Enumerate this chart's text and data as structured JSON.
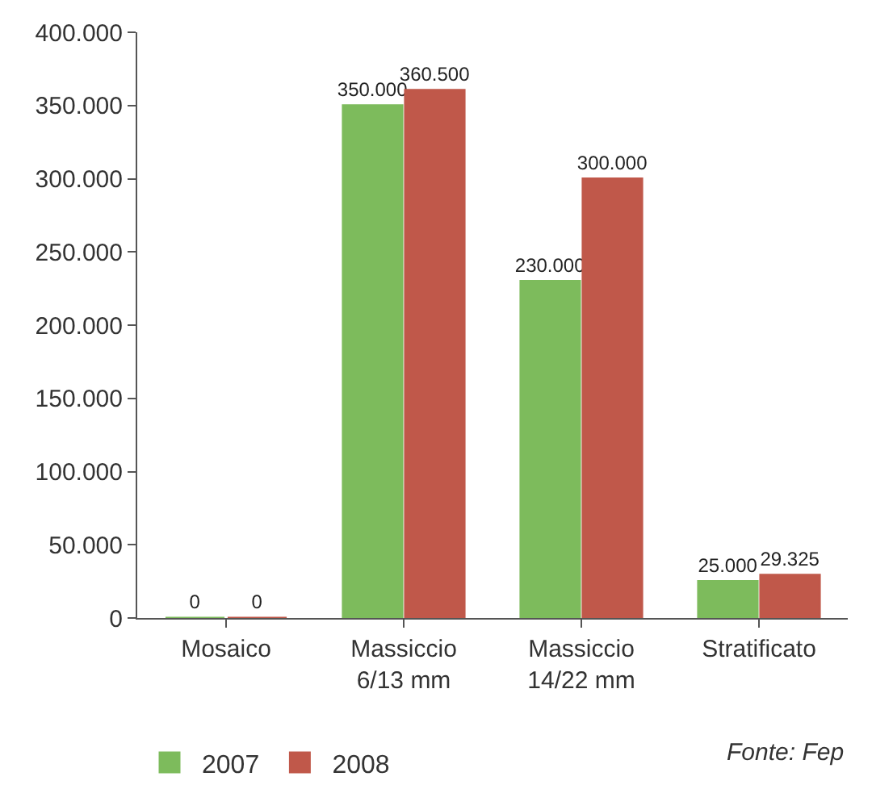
{
  "chart_data": {
    "type": "bar",
    "categories": [
      "Mosaico",
      "Massiccio\n6/13 mm",
      "Massiccio\n14/22 mm",
      "Stratificato"
    ],
    "series": [
      {
        "name": "2007",
        "color": "#7dbb5c",
        "values": [
          0,
          350000,
          230000,
          25000
        ],
        "value_labels": [
          "0",
          "350.000",
          "230.000",
          "25.000"
        ]
      },
      {
        "name": "2008",
        "color": "#c0584a",
        "values": [
          0,
          360500,
          300000,
          29325
        ],
        "value_labels": [
          "0",
          "360.500",
          "300.000",
          "29.325"
        ]
      }
    ],
    "ylim": [
      0,
      400000
    ],
    "yticks": [
      {
        "value": 0,
        "label": "0"
      },
      {
        "value": 50000,
        "label": "50.000"
      },
      {
        "value": 100000,
        "label": "100.000"
      },
      {
        "value": 150000,
        "label": "150.000"
      },
      {
        "value": 200000,
        "label": "200.000"
      },
      {
        "value": 250000,
        "label": "250.000"
      },
      {
        "value": 300000,
        "label": "300.000"
      },
      {
        "value": 350000,
        "label": "350.000"
      },
      {
        "value": 400000,
        "label": "400.000"
      }
    ],
    "grid": false,
    "legend": "bottom left",
    "annotations": [
      "Fonte: Fep"
    ]
  }
}
